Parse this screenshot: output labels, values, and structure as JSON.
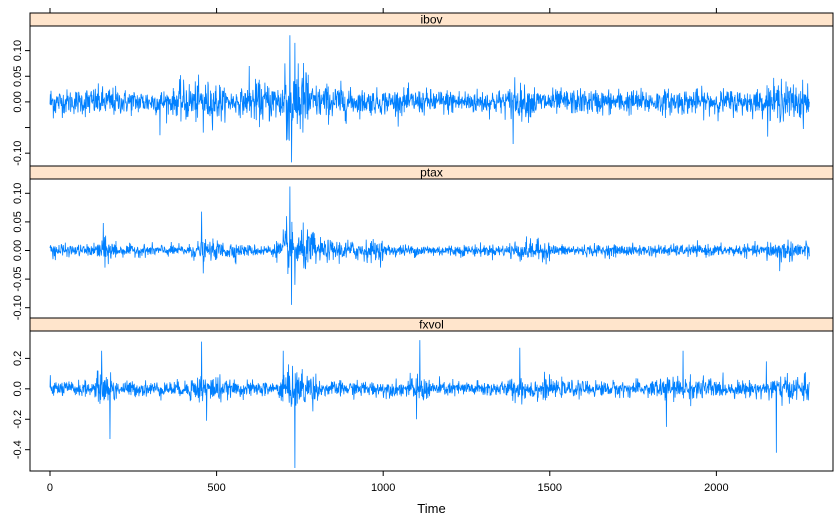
{
  "chart_data": {
    "type": "line",
    "layout": "lattice-strips",
    "xlabel": "Time",
    "xlim": [
      -60,
      2350
    ],
    "x_ticks": [
      0,
      500,
      1000,
      1500,
      2000
    ],
    "n": 2280,
    "color": "#0080ff",
    "strip_color": "#ffe5cc",
    "panels": [
      {
        "name": "ibov",
        "ylim": [
          -0.125,
          0.148
        ],
        "y_ticks": [
          -0.1,
          -0.05,
          0.0,
          0.05,
          0.1
        ],
        "y_tick_labels": [
          "-0.10",
          "",
          "0.00",
          "0.05",
          "0.10"
        ],
        "baseline_sd": 0.012,
        "volatility_regimes": [
          {
            "from": 0,
            "to": 20,
            "scale": 1.3
          },
          {
            "from": 100,
            "to": 200,
            "scale": 1.2
          },
          {
            "from": 380,
            "to": 520,
            "scale": 1.6
          },
          {
            "from": 600,
            "to": 700,
            "scale": 1.6
          },
          {
            "from": 700,
            "to": 780,
            "scale": 3.0
          },
          {
            "from": 780,
            "to": 900,
            "scale": 1.4
          },
          {
            "from": 1380,
            "to": 1460,
            "scale": 1.3
          },
          {
            "from": 2150,
            "to": 2280,
            "scale": 1.5
          }
        ],
        "spikes": [
          {
            "x": 720,
            "y": 0.13
          },
          {
            "x": 725,
            "y": -0.118
          },
          {
            "x": 735,
            "y": 0.115
          },
          {
            "x": 710,
            "y": -0.075
          },
          {
            "x": 745,
            "y": 0.075
          },
          {
            "x": 705,
            "y": 0.075
          },
          {
            "x": 1390,
            "y": -0.082
          },
          {
            "x": 1395,
            "y": 0.048
          },
          {
            "x": 598,
            "y": 0.07
          },
          {
            "x": 330,
            "y": -0.065
          },
          {
            "x": 460,
            "y": -0.06
          },
          {
            "x": 2195,
            "y": 0.045
          }
        ]
      },
      {
        "name": "ptax",
        "ylim": [
          -0.118,
          0.125
        ],
        "y_ticks": [
          -0.1,
          -0.05,
          0.0,
          0.05,
          0.1
        ],
        "y_tick_labels": [
          "-0.10",
          "-0.05",
          "0.00",
          "0.05",
          "0.10"
        ],
        "baseline_sd": 0.005,
        "volatility_regimes": [
          {
            "from": 0,
            "to": 40,
            "scale": 1.4
          },
          {
            "from": 140,
            "to": 200,
            "scale": 2.0
          },
          {
            "from": 420,
            "to": 560,
            "scale": 1.6
          },
          {
            "from": 680,
            "to": 700,
            "scale": 2.0
          },
          {
            "from": 700,
            "to": 800,
            "scale": 3.5
          },
          {
            "from": 800,
            "to": 1000,
            "scale": 1.8
          },
          {
            "from": 1380,
            "to": 1500,
            "scale": 1.8
          },
          {
            "from": 2150,
            "to": 2280,
            "scale": 1.8
          }
        ],
        "spikes": [
          {
            "x": 720,
            "y": 0.112
          },
          {
            "x": 725,
            "y": -0.095
          },
          {
            "x": 710,
            "y": 0.06
          },
          {
            "x": 735,
            "y": -0.06
          },
          {
            "x": 160,
            "y": 0.048
          },
          {
            "x": 165,
            "y": -0.03
          },
          {
            "x": 455,
            "y": 0.068
          },
          {
            "x": 460,
            "y": -0.04
          },
          {
            "x": 2190,
            "y": -0.036
          }
        ]
      },
      {
        "name": "fxvol",
        "ylim": [
          -0.54,
          0.38
        ],
        "y_ticks": [
          -0.4,
          -0.2,
          0.0,
          0.2
        ],
        "y_tick_labels": [
          "-0.4",
          "-0.2",
          "0.0",
          "0.2"
        ],
        "baseline_sd": 0.025,
        "volatility_regimes": [
          {
            "from": 140,
            "to": 200,
            "scale": 2.0
          },
          {
            "from": 420,
            "to": 520,
            "scale": 1.8
          },
          {
            "from": 690,
            "to": 800,
            "scale": 2.5
          },
          {
            "from": 1080,
            "to": 1140,
            "scale": 1.6
          },
          {
            "from": 1380,
            "to": 1500,
            "scale": 1.5
          },
          {
            "from": 1800,
            "to": 2000,
            "scale": 1.5
          },
          {
            "from": 2150,
            "to": 2280,
            "scale": 1.6
          }
        ],
        "spikes": [
          {
            "x": 155,
            "y": 0.25
          },
          {
            "x": 180,
            "y": -0.33
          },
          {
            "x": 455,
            "y": 0.31
          },
          {
            "x": 470,
            "y": -0.21
          },
          {
            "x": 700,
            "y": 0.25
          },
          {
            "x": 735,
            "y": -0.52
          },
          {
            "x": 1110,
            "y": 0.32
          },
          {
            "x": 1100,
            "y": -0.2
          },
          {
            "x": 1410,
            "y": 0.27
          },
          {
            "x": 1900,
            "y": 0.25
          },
          {
            "x": 1850,
            "y": -0.25
          },
          {
            "x": 2180,
            "y": -0.42
          },
          {
            "x": 2150,
            "y": 0.18
          }
        ]
      }
    ]
  }
}
